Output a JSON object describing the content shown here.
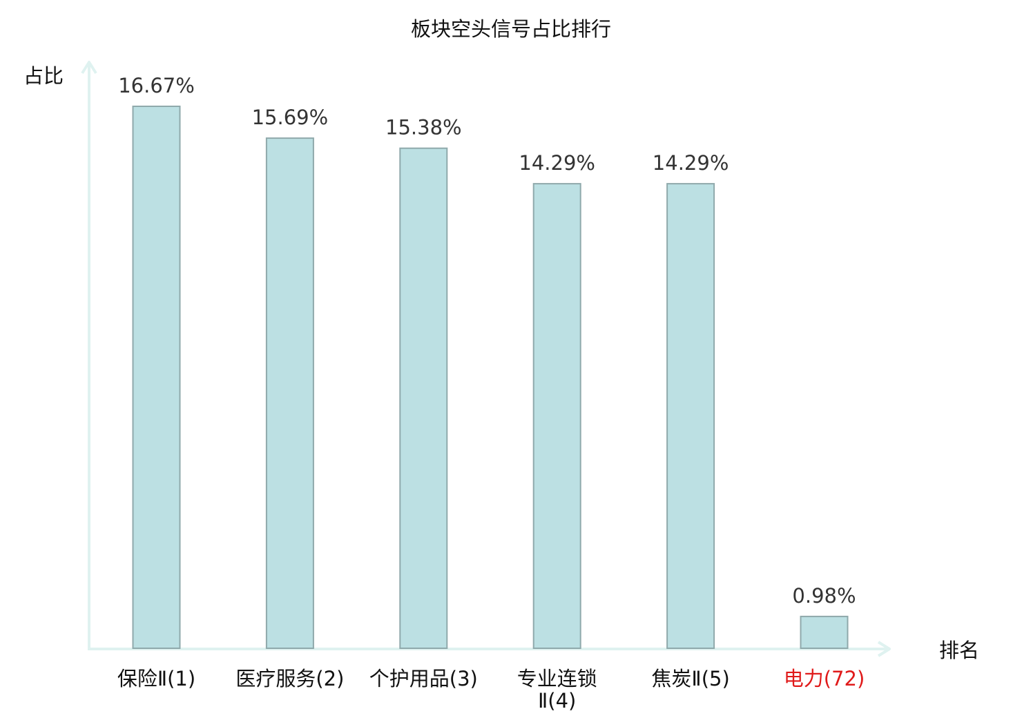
{
  "chart_data": {
    "type": "bar",
    "title": "板块空头信号占比排行",
    "ylabel": "占比",
    "xlabel": "排名",
    "ylim": [
      0,
      17.5
    ],
    "grid": false,
    "categories": [
      {
        "name": "保险Ⅱ",
        "rank": "(1)",
        "highlight": false
      },
      {
        "name": "医疗服务",
        "rank": "(2)",
        "highlight": false
      },
      {
        "name": "个护用品",
        "rank": "(3)",
        "highlight": false
      },
      {
        "name": "专业连锁",
        "rank": "Ⅱ(4)",
        "highlight": false,
        "wrap": true
      },
      {
        "name": "焦炭Ⅱ",
        "rank": "(5)",
        "highlight": false
      },
      {
        "name": "电力",
        "rank": "(72)",
        "highlight": true
      }
    ],
    "values": [
      16.67,
      15.69,
      15.38,
      14.29,
      14.29,
      0.98
    ],
    "value_labels": [
      "16.67%",
      "15.69%",
      "15.38%",
      "14.29%",
      "14.29%",
      "0.98%"
    ],
    "colors": {
      "bar_fill": "#bce0e3",
      "bar_stroke": "#8fa9ab",
      "axis": "#dff2f0",
      "highlight_text": "#e01a1a",
      "value_text": "#333333"
    }
  }
}
